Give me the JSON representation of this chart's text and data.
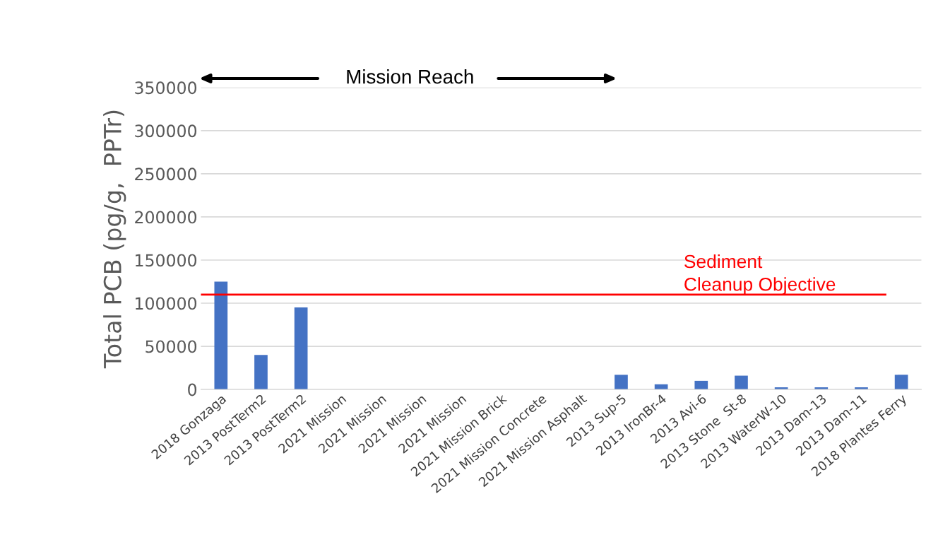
{
  "chart_data": {
    "type": "bar",
    "ylabel": "Total PCB (pg/g,  PPTr)",
    "categories": [
      "2018 Gonzaga",
      "2013 PostTerm2",
      "2013 PostTerm2",
      "2021 Mission",
      "2021 Mission",
      "2021 Mission",
      "2021 Mission",
      "2021 Mission Brick",
      "2021 Mission Concrete",
      "2021 Mission Asphalt",
      "2013 Sup-5",
      "2013 IronBr-4",
      "2013 Avi-6",
      "2013 Stone  St-8",
      "2013 WaterW-10",
      "2013 Dam-13",
      "2013 Dam-11",
      "2018 Plantes Ferry"
    ],
    "values": [
      125000,
      40000,
      95000,
      0,
      0,
      0,
      0,
      0,
      0,
      0,
      17000,
      6000,
      10000,
      16000,
      2500,
      2500,
      2500,
      17000
    ],
    "color": "#4472c4",
    "ylim": [
      0,
      350000
    ],
    "yticks": [
      0,
      50000,
      100000,
      150000,
      200000,
      250000,
      300000,
      350000
    ],
    "grid": "y",
    "ref_lines": [
      {
        "axis": "y",
        "value": 110000,
        "label": "Sediment\nCleanup Objective",
        "color": "#ff0000"
      }
    ],
    "annotations": [
      "Mission Reach"
    ]
  }
}
